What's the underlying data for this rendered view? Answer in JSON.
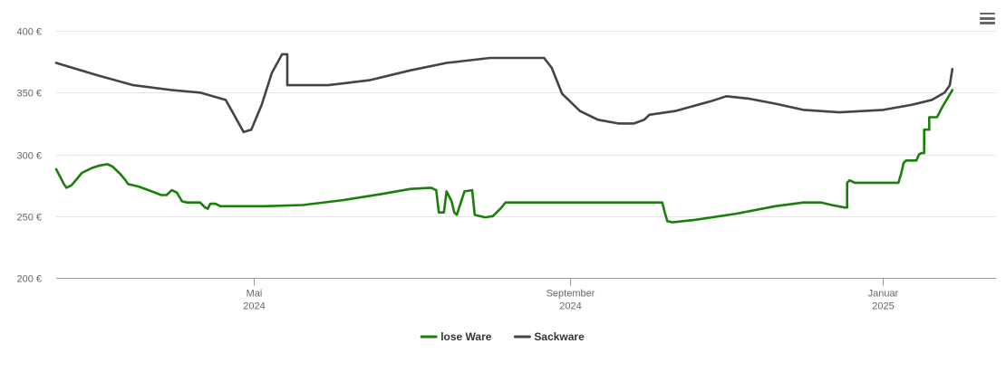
{
  "menu": {
    "icon": "hamburger-menu-icon"
  },
  "chart_data": {
    "type": "line",
    "title": "",
    "xlabel": "",
    "ylabel": "",
    "x_domain": [
      "2024-02-14",
      "2025-02-14"
    ],
    "ylim": [
      200,
      400
    ],
    "y_ticks": [
      {
        "value": 200,
        "label": "200 €"
      },
      {
        "value": 250,
        "label": "250 €"
      },
      {
        "value": 300,
        "label": "300 €"
      },
      {
        "value": 350,
        "label": "350 €"
      },
      {
        "value": 400,
        "label": "400 €"
      }
    ],
    "x_ticks": [
      {
        "date": "2024-05-01",
        "label": "Mai",
        "sublabel": "2024"
      },
      {
        "date": "2024-09-01",
        "label": "September",
        "sublabel": "2024"
      },
      {
        "date": "2025-01-01",
        "label": "Januar",
        "sublabel": "2025"
      }
    ],
    "grid": "horizontal",
    "legend_position": "bottom-center",
    "series": [
      {
        "name": "lose Ware",
        "color": "#1a7f0a",
        "points": [
          [
            "2024-02-14",
            288
          ],
          [
            "2024-02-17",
            276
          ],
          [
            "2024-02-18",
            273
          ],
          [
            "2024-02-20",
            275
          ],
          [
            "2024-02-22",
            280
          ],
          [
            "2024-02-24",
            285
          ],
          [
            "2024-02-28",
            289
          ],
          [
            "2024-03-02",
            291
          ],
          [
            "2024-03-05",
            292
          ],
          [
            "2024-03-07",
            290
          ],
          [
            "2024-03-10",
            284
          ],
          [
            "2024-03-12",
            279
          ],
          [
            "2024-03-13",
            276
          ],
          [
            "2024-03-17",
            274
          ],
          [
            "2024-03-21",
            271
          ],
          [
            "2024-03-26",
            267
          ],
          [
            "2024-03-28",
            267
          ],
          [
            "2024-03-30",
            271
          ],
          [
            "2024-04-01",
            269
          ],
          [
            "2024-04-03",
            262
          ],
          [
            "2024-04-05",
            261
          ],
          [
            "2024-04-10",
            261
          ],
          [
            "2024-04-12",
            257
          ],
          [
            "2024-04-13",
            256
          ],
          [
            "2024-04-14",
            260
          ],
          [
            "2024-04-16",
            260
          ],
          [
            "2024-04-18",
            258
          ],
          [
            "2024-04-23",
            258
          ],
          [
            "2024-05-05",
            258
          ],
          [
            "2024-05-20",
            259
          ],
          [
            "2024-06-05",
            263
          ],
          [
            "2024-06-20",
            268
          ],
          [
            "2024-07-01",
            272
          ],
          [
            "2024-07-09",
            273
          ],
          [
            "2024-07-11",
            271
          ],
          [
            "2024-07-12",
            253
          ],
          [
            "2024-07-14",
            253
          ],
          [
            "2024-07-15",
            270
          ],
          [
            "2024-07-17",
            262
          ],
          [
            "2024-07-18",
            253
          ],
          [
            "2024-07-19",
            251
          ],
          [
            "2024-07-22",
            270
          ],
          [
            "2024-07-25",
            271
          ],
          [
            "2024-07-26",
            251
          ],
          [
            "2024-07-30",
            249
          ],
          [
            "2024-08-02",
            250
          ],
          [
            "2024-08-05",
            256
          ],
          [
            "2024-08-07",
            261
          ],
          [
            "2024-08-15",
            261
          ],
          [
            "2024-09-01",
            261
          ],
          [
            "2024-09-20",
            261
          ],
          [
            "2024-10-05",
            261
          ],
          [
            "2024-10-07",
            261
          ],
          [
            "2024-10-08",
            253
          ],
          [
            "2024-10-09",
            246
          ],
          [
            "2024-10-11",
            245
          ],
          [
            "2024-10-20",
            247
          ],
          [
            "2024-11-05",
            252
          ],
          [
            "2024-11-20",
            258
          ],
          [
            "2024-12-01",
            261
          ],
          [
            "2024-12-08",
            261
          ],
          [
            "2024-12-12",
            259
          ],
          [
            "2024-12-17",
            257
          ],
          [
            "2024-12-18",
            257
          ],
          [
            "2024-12-18",
            277
          ],
          [
            "2024-12-19",
            279
          ],
          [
            "2024-12-21",
            277
          ],
          [
            "2024-12-28",
            277
          ],
          [
            "2025-01-06",
            277
          ],
          [
            "2025-01-07",
            277
          ],
          [
            "2025-01-08",
            284
          ],
          [
            "2025-01-09",
            293
          ],
          [
            "2025-01-10",
            295
          ],
          [
            "2025-01-14",
            295
          ],
          [
            "2025-01-15",
            300
          ],
          [
            "2025-01-16",
            301
          ],
          [
            "2025-01-17",
            301
          ],
          [
            "2025-01-17",
            320
          ],
          [
            "2025-01-19",
            320
          ],
          [
            "2025-01-19",
            330
          ],
          [
            "2025-01-22",
            330
          ],
          [
            "2025-01-23",
            334
          ],
          [
            "2025-01-24",
            338
          ],
          [
            "2025-01-26",
            345
          ],
          [
            "2025-01-28",
            352
          ]
        ]
      },
      {
        "name": "Sackware",
        "color": "#434348",
        "points": [
          [
            "2024-02-14",
            374
          ],
          [
            "2024-03-01",
            364
          ],
          [
            "2024-03-15",
            356
          ],
          [
            "2024-03-30",
            352
          ],
          [
            "2024-04-10",
            350
          ],
          [
            "2024-04-20",
            344
          ],
          [
            "2024-04-23",
            333
          ],
          [
            "2024-04-27",
            318
          ],
          [
            "2024-04-30",
            320
          ],
          [
            "2024-05-04",
            340
          ],
          [
            "2024-05-08",
            366
          ],
          [
            "2024-05-12",
            381
          ],
          [
            "2024-05-14",
            381
          ],
          [
            "2024-05-14",
            356
          ],
          [
            "2024-05-30",
            356
          ],
          [
            "2024-06-15",
            360
          ],
          [
            "2024-07-01",
            368
          ],
          [
            "2024-07-15",
            374
          ],
          [
            "2024-08-01",
            378
          ],
          [
            "2024-08-20",
            378
          ],
          [
            "2024-08-22",
            378
          ],
          [
            "2024-08-25",
            370
          ],
          [
            "2024-08-29",
            349
          ],
          [
            "2024-09-05",
            335
          ],
          [
            "2024-09-12",
            328
          ],
          [
            "2024-09-20",
            325
          ],
          [
            "2024-09-26",
            325
          ],
          [
            "2024-09-30",
            328
          ],
          [
            "2024-10-02",
            332
          ],
          [
            "2024-10-12",
            335
          ],
          [
            "2024-10-26",
            343
          ],
          [
            "2024-11-01",
            347
          ],
          [
            "2024-11-10",
            345
          ],
          [
            "2024-11-20",
            341
          ],
          [
            "2024-12-01",
            336
          ],
          [
            "2024-12-15",
            334
          ],
          [
            "2025-01-01",
            336
          ],
          [
            "2025-01-12",
            340
          ],
          [
            "2025-01-20",
            344
          ],
          [
            "2025-01-25",
            350
          ],
          [
            "2025-01-27",
            356
          ],
          [
            "2025-01-28",
            369
          ]
        ]
      }
    ]
  }
}
